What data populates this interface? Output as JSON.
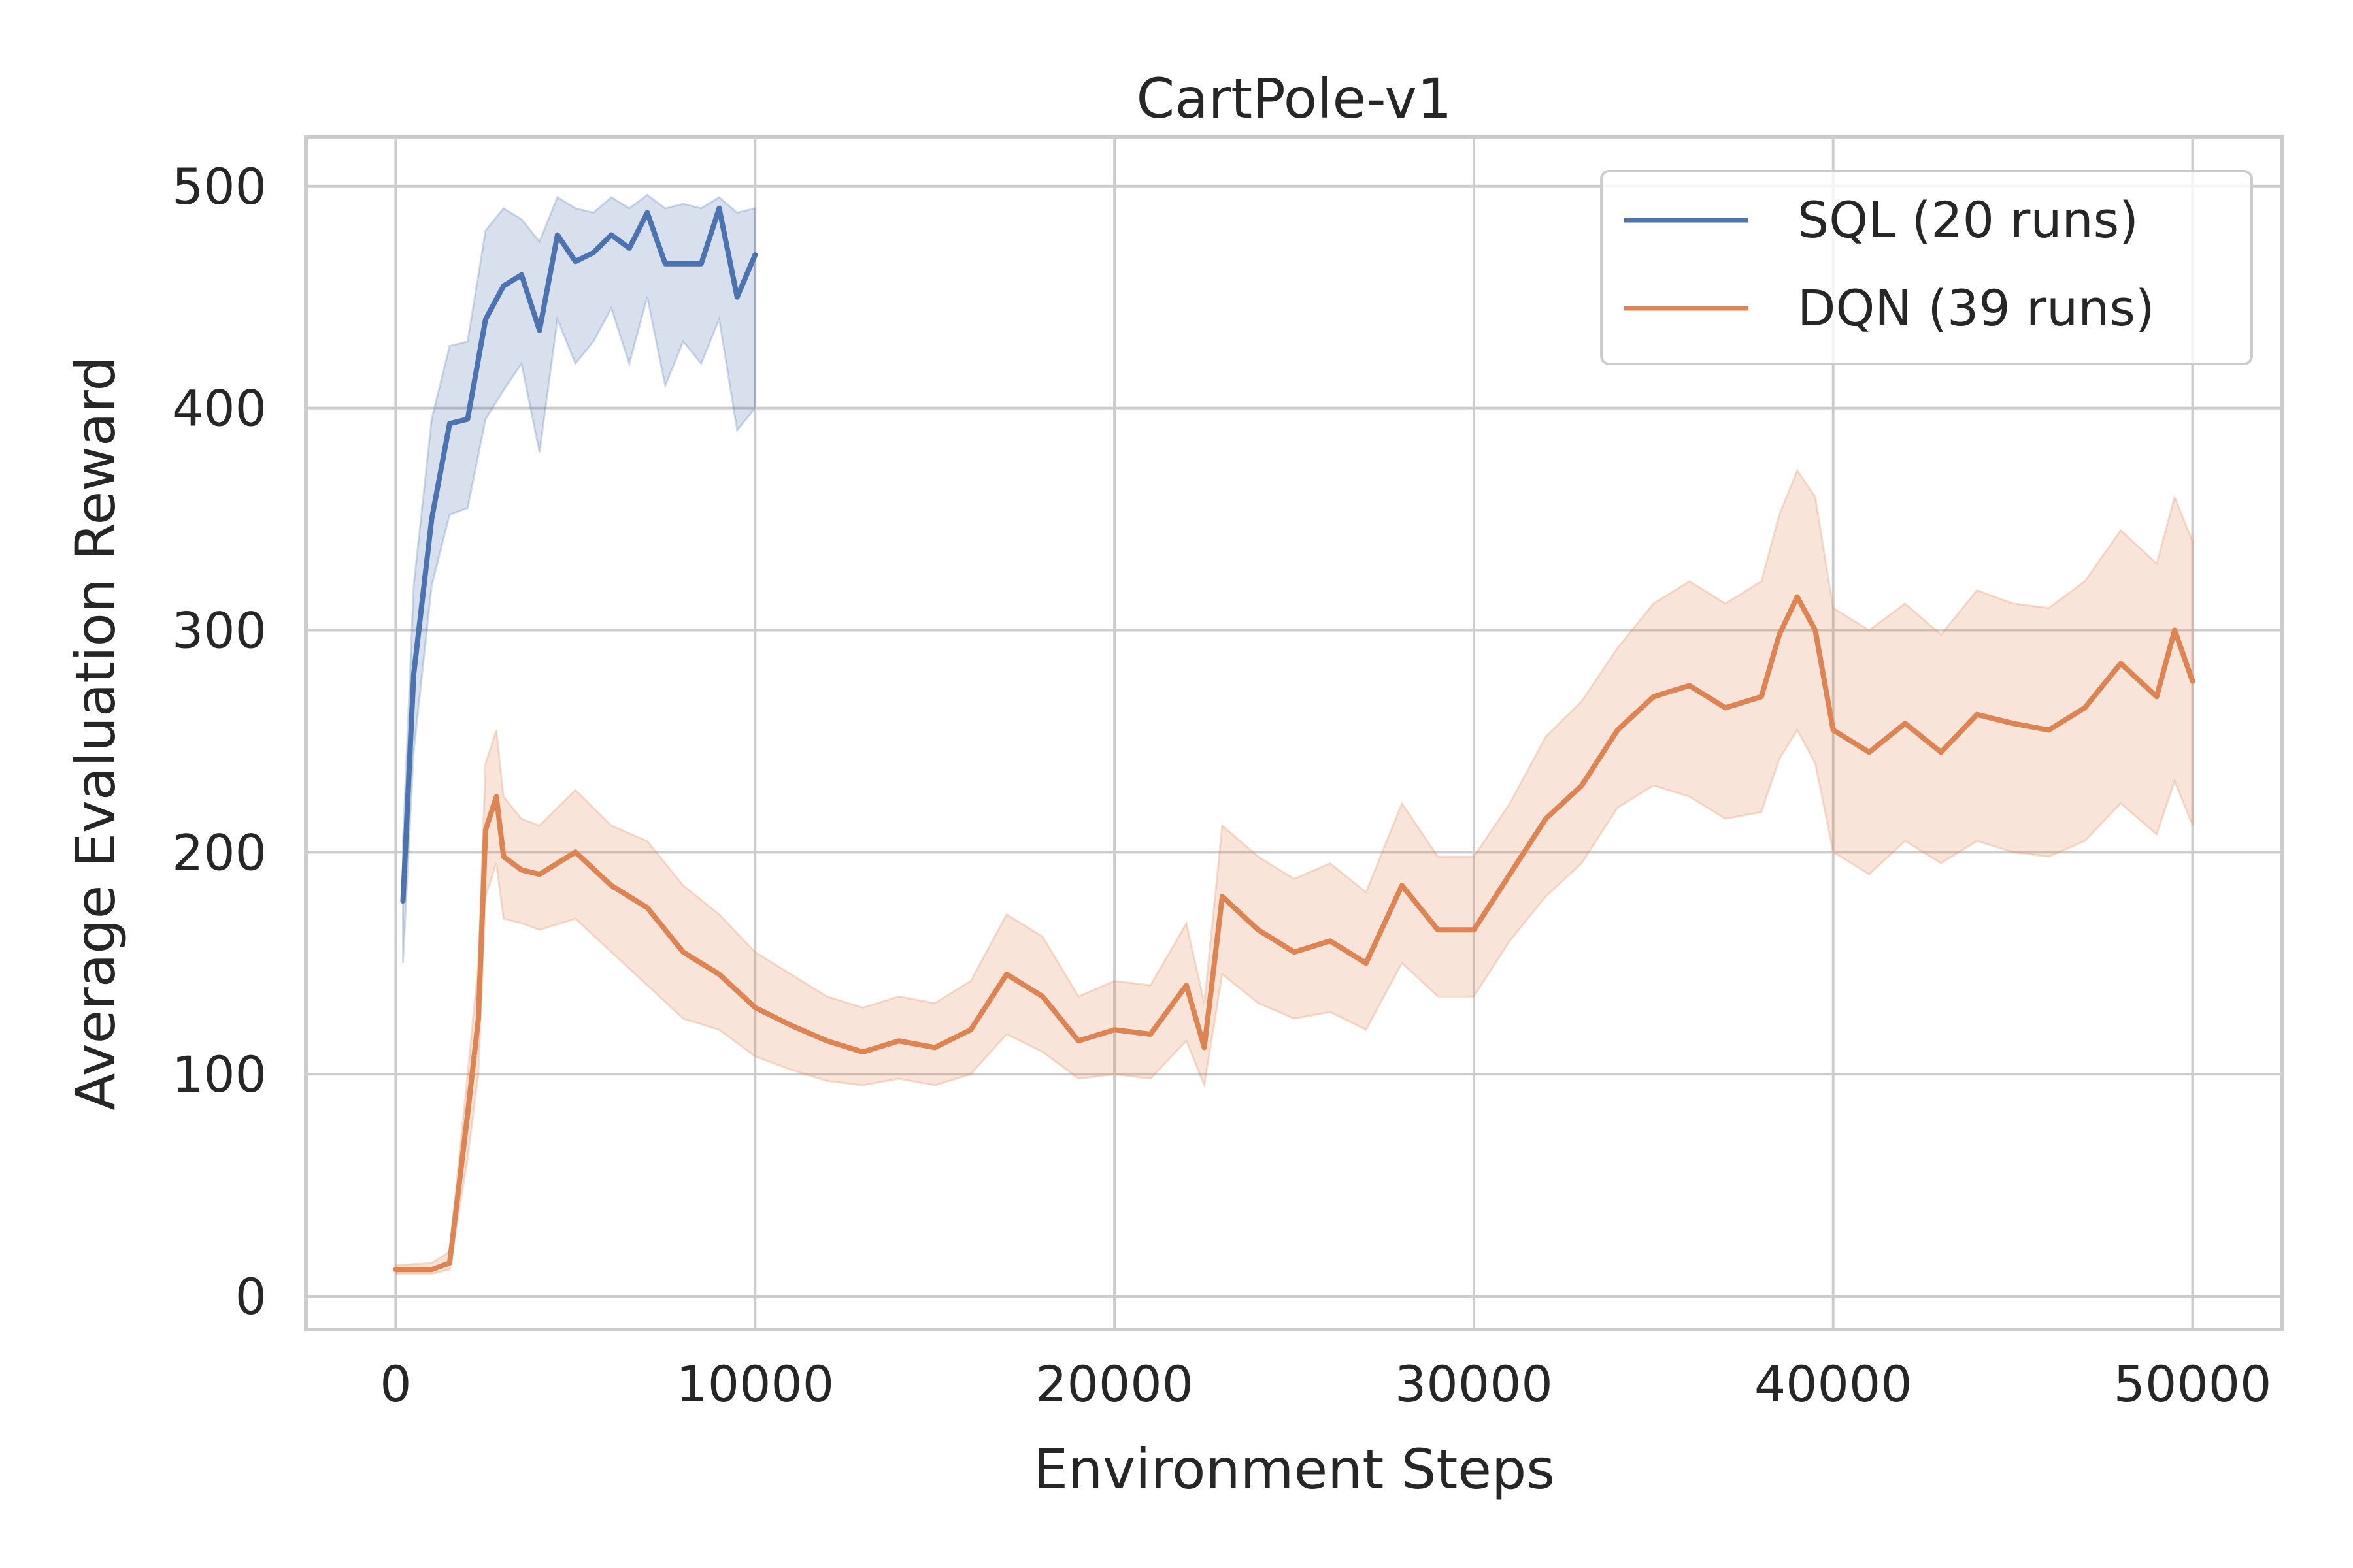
{
  "chart_data": {
    "type": "line",
    "title": "CartPole-v1",
    "xlabel": "Environment Steps",
    "ylabel": "Average Evaluation Reward",
    "xlim": [
      -2500,
      52500
    ],
    "ylim": [
      -15,
      522
    ],
    "xticks": [
      0,
      10000,
      20000,
      30000,
      40000,
      50000
    ],
    "yticks": [
      0,
      100,
      200,
      300,
      400,
      500
    ],
    "grid": true,
    "legend_position": "top-right",
    "series": [
      {
        "name": "SQL (20 runs)",
        "color": "#4c72b0",
        "x": [
          200,
          500,
          1000,
          1500,
          2000,
          2500,
          3000,
          3500,
          4000,
          4500,
          5000,
          5500,
          6000,
          6500,
          7000,
          7500,
          8000,
          8500,
          9000,
          9500,
          10000
        ],
        "mean": [
          178,
          280,
          350,
          393,
          395,
          440,
          455,
          460,
          435,
          478,
          466,
          470,
          478,
          472,
          488,
          465,
          465,
          465,
          490,
          450,
          469
        ],
        "lower": [
          150,
          245,
          320,
          352,
          355,
          395,
          408,
          420,
          380,
          440,
          420,
          430,
          445,
          420,
          450,
          410,
          430,
          420,
          440,
          390,
          400
        ],
        "upper": [
          205,
          320,
          395,
          428,
          430,
          480,
          490,
          485,
          475,
          495,
          490,
          488,
          495,
          490,
          496,
          490,
          492,
          490,
          495,
          488,
          490
        ]
      },
      {
        "name": "DQN (39 runs)",
        "color": "#dd8452",
        "x": [
          0,
          1000,
          1500,
          2000,
          2300,
          2500,
          2800,
          3000,
          3500,
          4000,
          5000,
          6000,
          7000,
          8000,
          9000,
          10000,
          11000,
          12000,
          13000,
          14000,
          15000,
          16000,
          17000,
          18000,
          19000,
          20000,
          21000,
          22000,
          22500,
          23000,
          24000,
          25000,
          26000,
          27000,
          28000,
          29000,
          30000,
          31000,
          32000,
          33000,
          34000,
          35000,
          36000,
          37000,
          38000,
          38500,
          39000,
          39500,
          40000,
          41000,
          42000,
          43000,
          44000,
          45000,
          46000,
          47000,
          48000,
          49000,
          49500,
          50000
        ],
        "mean": [
          12,
          12,
          15,
          82,
          125,
          210,
          225,
          198,
          192,
          190,
          200,
          185,
          175,
          155,
          145,
          130,
          122,
          115,
          110,
          115,
          112,
          120,
          145,
          135,
          115,
          120,
          118,
          140,
          112,
          180,
          165,
          155,
          160,
          150,
          185,
          165,
          165,
          190,
          215,
          230,
          255,
          270,
          275,
          265,
          270,
          298,
          315,
          300,
          255,
          245,
          258,
          245,
          262,
          258,
          255,
          265,
          285,
          270,
          300,
          277
        ],
        "lower": [
          10,
          10,
          12,
          62,
          100,
          180,
          195,
          170,
          168,
          165,
          170,
          155,
          140,
          125,
          120,
          108,
          102,
          97,
          95,
          98,
          95,
          100,
          118,
          110,
          98,
          100,
          98,
          115,
          95,
          145,
          132,
          125,
          128,
          120,
          150,
          135,
          135,
          160,
          180,
          195,
          220,
          230,
          225,
          215,
          218,
          242,
          255,
          240,
          200,
          190,
          205,
          195,
          205,
          200,
          198,
          205,
          222,
          208,
          232,
          212
        ],
        "upper": [
          14,
          15,
          20,
          100,
          150,
          240,
          255,
          225,
          215,
          212,
          228,
          212,
          205,
          185,
          172,
          155,
          145,
          135,
          130,
          135,
          132,
          142,
          172,
          162,
          135,
          142,
          140,
          168,
          132,
          212,
          198,
          188,
          195,
          182,
          222,
          198,
          198,
          222,
          252,
          268,
          292,
          312,
          322,
          312,
          322,
          352,
          372,
          360,
          310,
          300,
          312,
          298,
          318,
          312,
          310,
          322,
          345,
          330,
          360,
          340
        ]
      }
    ]
  }
}
